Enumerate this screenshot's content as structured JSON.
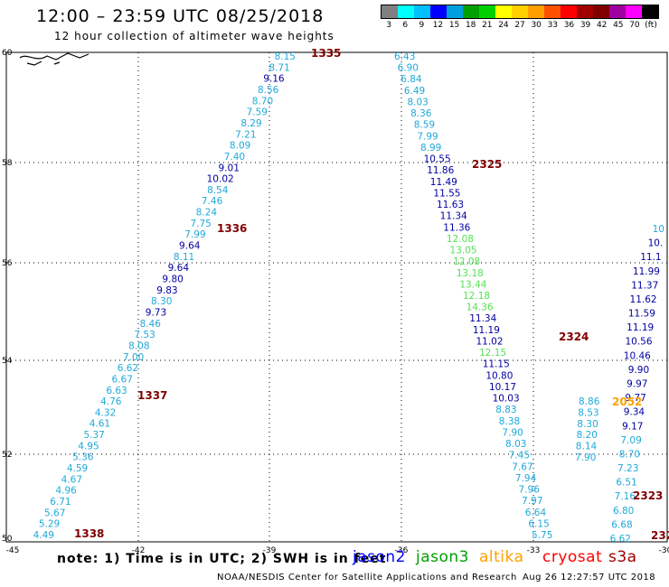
{
  "title": "12:00 – 23:59 UTC 08/25/2018",
  "subtitle": "12 hour collection of altimeter wave heights",
  "colorbar": {
    "labels": [
      "3",
      "6",
      "9",
      "12",
      "15",
      "18",
      "21",
      "24",
      "27",
      "30",
      "33",
      "36",
      "39",
      "42",
      "45",
      "70",
      "(ft)"
    ],
    "colors": [
      "#808080",
      "#00ffff",
      "#00bfff",
      "#0000ff",
      "#009fdf",
      "#00a000",
      "#00d000",
      "#ffff00",
      "#ffd000",
      "#ffa000",
      "#ff5000",
      "#ff0000",
      "#a00000",
      "#800000",
      "#a000a0",
      "#ff00ff",
      "#000000"
    ]
  },
  "axes": {
    "x_ticks": [
      "-45",
      "-42",
      "-39",
      "-36",
      "-33",
      "-30"
    ],
    "y_ticks": [
      "60",
      "58",
      "56",
      "54",
      "52",
      "50"
    ]
  },
  "colors": {
    "light": "#1fa9d9",
    "dark": "#0000a0",
    "green": "#55e055",
    "orbit": "#800000",
    "orange": "#ffa000"
  },
  "tracks": [
    {
      "id": "1335",
      "points": [
        {
          "v": "8.15",
          "c": "light"
        },
        {
          "v": "8.71",
          "c": "light"
        },
        {
          "v": "9.16",
          "c": "dark"
        },
        {
          "v": "8.56",
          "c": "light"
        },
        {
          "v": "8.70",
          "c": "light"
        },
        {
          "v": "7.59",
          "c": "light"
        },
        {
          "v": "8.29",
          "c": "light"
        },
        {
          "v": "7.21",
          "c": "light"
        },
        {
          "v": "8.09",
          "c": "light"
        },
        {
          "v": "7.40",
          "c": "light"
        },
        {
          "v": "9.01",
          "c": "dark"
        },
        {
          "v": "10.02",
          "c": "dark"
        },
        {
          "v": "8.54",
          "c": "light"
        },
        {
          "v": "7.46",
          "c": "light"
        },
        {
          "v": "8.24",
          "c": "light"
        },
        {
          "v": "7.75",
          "c": "light"
        },
        {
          "v": "7.99",
          "c": "light"
        },
        {
          "v": "9.64",
          "c": "dark"
        },
        {
          "v": "8.11",
          "c": "light"
        },
        {
          "v": "9.64",
          "c": "dark"
        },
        {
          "v": "9.80",
          "c": "dark"
        },
        {
          "v": "9.83",
          "c": "dark"
        },
        {
          "v": "8.30",
          "c": "light"
        },
        {
          "v": "9.73",
          "c": "dark"
        },
        {
          "v": "8.46",
          "c": "light"
        },
        {
          "v": "7.53",
          "c": "light"
        },
        {
          "v": "8.08",
          "c": "light"
        },
        {
          "v": "7.00",
          "c": "light"
        },
        {
          "v": "6.62",
          "c": "light"
        },
        {
          "v": "6.67",
          "c": "light"
        },
        {
          "v": "6.63",
          "c": "light"
        },
        {
          "v": "4.76",
          "c": "light"
        },
        {
          "v": "4.32",
          "c": "light"
        },
        {
          "v": "4.61",
          "c": "light"
        },
        {
          "v": "5.37",
          "c": "light"
        },
        {
          "v": "4.95",
          "c": "light"
        },
        {
          "v": "5.36",
          "c": "light"
        },
        {
          "v": "4.59",
          "c": "light"
        },
        {
          "v": "4.67",
          "c": "light"
        },
        {
          "v": "4.96",
          "c": "light"
        },
        {
          "v": "6.71",
          "c": "light"
        },
        {
          "v": "5.67",
          "c": "light"
        },
        {
          "v": "5.29",
          "c": "light"
        },
        {
          "v": "4.49",
          "c": "light"
        }
      ]
    },
    {
      "id": "2325",
      "points": [
        {
          "v": "6.43",
          "c": "light"
        },
        {
          "v": "6.90",
          "c": "light"
        },
        {
          "v": "6.84",
          "c": "light"
        },
        {
          "v": "6.49",
          "c": "light"
        },
        {
          "v": "8.03",
          "c": "light"
        },
        {
          "v": "8.36",
          "c": "light"
        },
        {
          "v": "8.59",
          "c": "light"
        },
        {
          "v": "7.99",
          "c": "light"
        },
        {
          "v": "8.99",
          "c": "light"
        },
        {
          "v": "10.55",
          "c": "dark"
        },
        {
          "v": "11.86",
          "c": "dark"
        },
        {
          "v": "11.49",
          "c": "dark"
        },
        {
          "v": "11.55",
          "c": "dark"
        },
        {
          "v": "11.63",
          "c": "dark"
        },
        {
          "v": "11.34",
          "c": "dark"
        },
        {
          "v": "11.36",
          "c": "dark"
        },
        {
          "v": "12.08",
          "c": "green"
        },
        {
          "v": "13.05",
          "c": "green"
        },
        {
          "v": "12.08",
          "c": "green"
        },
        {
          "v": "13.18",
          "c": "green"
        },
        {
          "v": "13.44",
          "c": "green"
        },
        {
          "v": "12.18",
          "c": "green"
        },
        {
          "v": "14.36",
          "c": "green"
        },
        {
          "v": "11.34",
          "c": "dark"
        },
        {
          "v": "11.19",
          "c": "dark"
        },
        {
          "v": "11.02",
          "c": "dark"
        },
        {
          "v": "12.15",
          "c": "green"
        },
        {
          "v": "11.15",
          "c": "dark"
        },
        {
          "v": "10.80",
          "c": "dark"
        },
        {
          "v": "10.17",
          "c": "dark"
        },
        {
          "v": "10.03",
          "c": "dark"
        },
        {
          "v": "8.83",
          "c": "light"
        },
        {
          "v": "8.38",
          "c": "light"
        },
        {
          "v": "7.90",
          "c": "light"
        },
        {
          "v": "8.03",
          "c": "light"
        },
        {
          "v": "7.45",
          "c": "light"
        },
        {
          "v": "7.67",
          "c": "light"
        },
        {
          "v": "7.94",
          "c": "light"
        },
        {
          "v": "7.96",
          "c": "light"
        },
        {
          "v": "7.97",
          "c": "light"
        },
        {
          "v": "6.64",
          "c": "light"
        },
        {
          "v": "6.15",
          "c": "light"
        },
        {
          "v": "5.75",
          "c": "light"
        }
      ]
    },
    {
      "id": "2052",
      "points": [
        {
          "v": "8.86",
          "c": "light"
        },
        {
          "v": "8.53",
          "c": "light"
        },
        {
          "v": "8.30",
          "c": "light"
        },
        {
          "v": "8.20",
          "c": "light"
        },
        {
          "v": "8.14",
          "c": "light"
        },
        {
          "v": "7.90",
          "c": "light"
        }
      ]
    },
    {
      "id": "2323",
      "points": [
        {
          "v": "10",
          "c": "light"
        },
        {
          "v": "10.",
          "c": "dark"
        },
        {
          "v": "11.1",
          "c": "dark"
        },
        {
          "v": "11.99",
          "c": "dark"
        },
        {
          "v": "11.37",
          "c": "dark"
        },
        {
          "v": "11.62",
          "c": "dark"
        },
        {
          "v": "11.59",
          "c": "dark"
        },
        {
          "v": "11.19",
          "c": "dark"
        },
        {
          "v": "10.56",
          "c": "dark"
        },
        {
          "v": "10.46",
          "c": "dark"
        },
        {
          "v": "9.90",
          "c": "dark"
        },
        {
          "v": "9.97",
          "c": "dark"
        },
        {
          "v": "9.77",
          "c": "dark"
        },
        {
          "v": "9.34",
          "c": "dark"
        },
        {
          "v": "9.17",
          "c": "dark"
        },
        {
          "v": "7.09",
          "c": "light"
        },
        {
          "v": "8.70",
          "c": "light"
        },
        {
          "v": "7.23",
          "c": "light"
        },
        {
          "v": "6.51",
          "c": "light"
        },
        {
          "v": "7.16",
          "c": "light"
        },
        {
          "v": "6.80",
          "c": "light"
        },
        {
          "v": "6.68",
          "c": "light"
        },
        {
          "v": "6.62",
          "c": "light"
        }
      ]
    }
  ],
  "orbit_labels": [
    {
      "text": "1335",
      "c": "orbit"
    },
    {
      "text": "2325",
      "c": "orbit"
    },
    {
      "text": "1336",
      "c": "orbit"
    },
    {
      "text": "2324",
      "c": "orbit"
    },
    {
      "text": "1337",
      "c": "orbit"
    },
    {
      "text": "2052",
      "c": "orange"
    },
    {
      "text": "2323",
      "c": "orbit"
    },
    {
      "text": "1338",
      "c": "orbit"
    },
    {
      "text": "232",
      "c": "orbit"
    }
  ],
  "note": "note: 1) Time is in UTC; 2) SWH is in feet",
  "legend": [
    {
      "name": "jason2",
      "color": "#0000ff"
    },
    {
      "name": "jason3",
      "color": "#00a000"
    },
    {
      "name": "altika",
      "color": "#ffa000"
    },
    {
      "name": "cryosat",
      "color": "#ff0000"
    },
    {
      "name": "s3a",
      "color": "#a00000"
    }
  ],
  "footer": "NOAA/NESDIS Center for Satellite Applications and Research",
  "timestamp": "Aug 26 12:27:57 UTC 2018"
}
